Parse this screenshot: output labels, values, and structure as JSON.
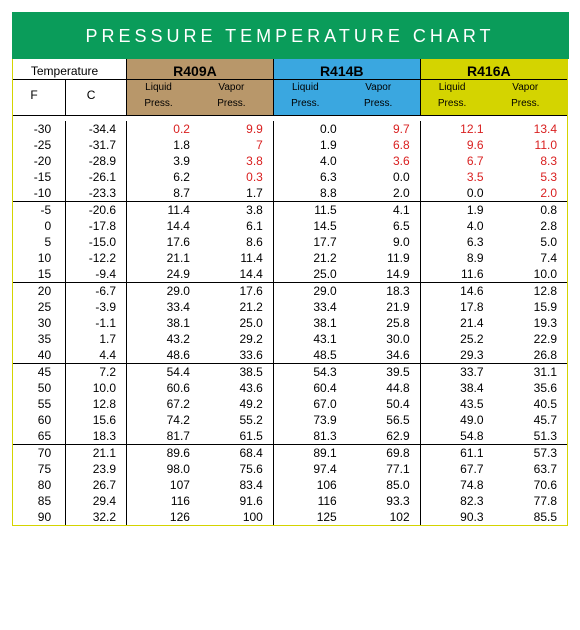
{
  "title": "PRESSURE TEMPERATURE CHART",
  "columns": {
    "temp_label": "Temperature",
    "temp_f": "F",
    "temp_c": "C",
    "liquid": "Liquid Press.",
    "vapor": "Vapor Press."
  },
  "refrigerants": [
    {
      "name": "R409A",
      "bg": "#b8976a"
    },
    {
      "name": "R414B",
      "bg": "#3aa7e0"
    },
    {
      "name": "R416A",
      "bg": "#d4d400"
    }
  ],
  "colors": {
    "title_bg": "#0a9c5a",
    "title_fg": "#ffffff",
    "red": "#d92020",
    "frame": "#d4d400"
  },
  "groups": [
    [
      {
        "f": "-30",
        "c": "-34.4",
        "r409": [
          "0.2",
          "9.9"
        ],
        "r414": [
          "0.0",
          "9.7"
        ],
        "r416": [
          "12.1",
          "13.4"
        ],
        "red": {
          "r409": [
            true,
            true
          ],
          "r414": [
            false,
            true
          ],
          "r416": [
            true,
            true
          ]
        }
      },
      {
        "f": "-25",
        "c": "-31.7",
        "r409": [
          "1.8",
          "7"
        ],
        "r414": [
          "1.9",
          "6.8"
        ],
        "r416": [
          "9.6",
          "11.0"
        ],
        "red": {
          "r409": [
            false,
            true
          ],
          "r414": [
            false,
            true
          ],
          "r416": [
            true,
            true
          ]
        }
      },
      {
        "f": "-20",
        "c": "-28.9",
        "r409": [
          "3.9",
          "3.8"
        ],
        "r414": [
          "4.0",
          "3.6"
        ],
        "r416": [
          "6.7",
          "8.3"
        ],
        "red": {
          "r409": [
            false,
            true
          ],
          "r414": [
            false,
            true
          ],
          "r416": [
            true,
            true
          ]
        }
      },
      {
        "f": "-15",
        "c": "-26.1",
        "r409": [
          "6.2",
          "0.3"
        ],
        "r414": [
          "6.3",
          "0.0"
        ],
        "r416": [
          "3.5",
          "5.3"
        ],
        "red": {
          "r409": [
            false,
            true
          ],
          "r414": [
            false,
            false
          ],
          "r416": [
            true,
            true
          ]
        }
      },
      {
        "f": "-10",
        "c": "-23.3",
        "r409": [
          "8.7",
          "1.7"
        ],
        "r414": [
          "8.8",
          "2.0"
        ],
        "r416": [
          "0.0",
          "2.0"
        ],
        "red": {
          "r409": [
            false,
            false
          ],
          "r414": [
            false,
            false
          ],
          "r416": [
            false,
            true
          ]
        }
      }
    ],
    [
      {
        "f": "-5",
        "c": "-20.6",
        "r409": [
          "11.4",
          "3.8"
        ],
        "r414": [
          "11.5",
          "4.1"
        ],
        "r416": [
          "1.9",
          "0.8"
        ]
      },
      {
        "f": "0",
        "c": "-17.8",
        "r409": [
          "14.4",
          "6.1"
        ],
        "r414": [
          "14.5",
          "6.5"
        ],
        "r416": [
          "4.0",
          "2.8"
        ]
      },
      {
        "f": "5",
        "c": "-15.0",
        "r409": [
          "17.6",
          "8.6"
        ],
        "r414": [
          "17.7",
          "9.0"
        ],
        "r416": [
          "6.3",
          "5.0"
        ]
      },
      {
        "f": "10",
        "c": "-12.2",
        "r409": [
          "21.1",
          "11.4"
        ],
        "r414": [
          "21.2",
          "11.9"
        ],
        "r416": [
          "8.9",
          "7.4"
        ]
      },
      {
        "f": "15",
        "c": "-9.4",
        "r409": [
          "24.9",
          "14.4"
        ],
        "r414": [
          "25.0",
          "14.9"
        ],
        "r416": [
          "11.6",
          "10.0"
        ]
      }
    ],
    [
      {
        "f": "20",
        "c": "-6.7",
        "r409": [
          "29.0",
          "17.6"
        ],
        "r414": [
          "29.0",
          "18.3"
        ],
        "r416": [
          "14.6",
          "12.8"
        ]
      },
      {
        "f": "25",
        "c": "-3.9",
        "r409": [
          "33.4",
          "21.2"
        ],
        "r414": [
          "33.4",
          "21.9"
        ],
        "r416": [
          "17.8",
          "15.9"
        ]
      },
      {
        "f": "30",
        "c": "-1.1",
        "r409": [
          "38.1",
          "25.0"
        ],
        "r414": [
          "38.1",
          "25.8"
        ],
        "r416": [
          "21.4",
          "19.3"
        ]
      },
      {
        "f": "35",
        "c": "1.7",
        "r409": [
          "43.2",
          "29.2"
        ],
        "r414": [
          "43.1",
          "30.0"
        ],
        "r416": [
          "25.2",
          "22.9"
        ]
      },
      {
        "f": "40",
        "c": "4.4",
        "r409": [
          "48.6",
          "33.6"
        ],
        "r414": [
          "48.5",
          "34.6"
        ],
        "r416": [
          "29.3",
          "26.8"
        ]
      }
    ],
    [
      {
        "f": "45",
        "c": "7.2",
        "r409": [
          "54.4",
          "38.5"
        ],
        "r414": [
          "54.3",
          "39.5"
        ],
        "r416": [
          "33.7",
          "31.1"
        ]
      },
      {
        "f": "50",
        "c": "10.0",
        "r409": [
          "60.6",
          "43.6"
        ],
        "r414": [
          "60.4",
          "44.8"
        ],
        "r416": [
          "38.4",
          "35.6"
        ]
      },
      {
        "f": "55",
        "c": "12.8",
        "r409": [
          "67.2",
          "49.2"
        ],
        "r414": [
          "67.0",
          "50.4"
        ],
        "r416": [
          "43.5",
          "40.5"
        ]
      },
      {
        "f": "60",
        "c": "15.6",
        "r409": [
          "74.2",
          "55.2"
        ],
        "r414": [
          "73.9",
          "56.5"
        ],
        "r416": [
          "49.0",
          "45.7"
        ]
      },
      {
        "f": "65",
        "c": "18.3",
        "r409": [
          "81.7",
          "61.5"
        ],
        "r414": [
          "81.3",
          "62.9"
        ],
        "r416": [
          "54.8",
          "51.3"
        ]
      }
    ],
    [
      {
        "f": "70",
        "c": "21.1",
        "r409": [
          "89.6",
          "68.4"
        ],
        "r414": [
          "89.1",
          "69.8"
        ],
        "r416": [
          "61.1",
          "57.3"
        ]
      },
      {
        "f": "75",
        "c": "23.9",
        "r409": [
          "98.0",
          "75.6"
        ],
        "r414": [
          "97.4",
          "77.1"
        ],
        "r416": [
          "67.7",
          "63.7"
        ]
      },
      {
        "f": "80",
        "c": "26.7",
        "r409": [
          "107",
          "83.4"
        ],
        "r414": [
          "106",
          "85.0"
        ],
        "r416": [
          "74.8",
          "70.6"
        ]
      },
      {
        "f": "85",
        "c": "29.4",
        "r409": [
          "116",
          "91.6"
        ],
        "r414": [
          "116",
          "93.3"
        ],
        "r416": [
          "82.3",
          "77.8"
        ]
      },
      {
        "f": "90",
        "c": "32.2",
        "r409": [
          "126",
          "100"
        ],
        "r414": [
          "125",
          "102"
        ],
        "r416": [
          "90.3",
          "85.5"
        ]
      }
    ]
  ]
}
